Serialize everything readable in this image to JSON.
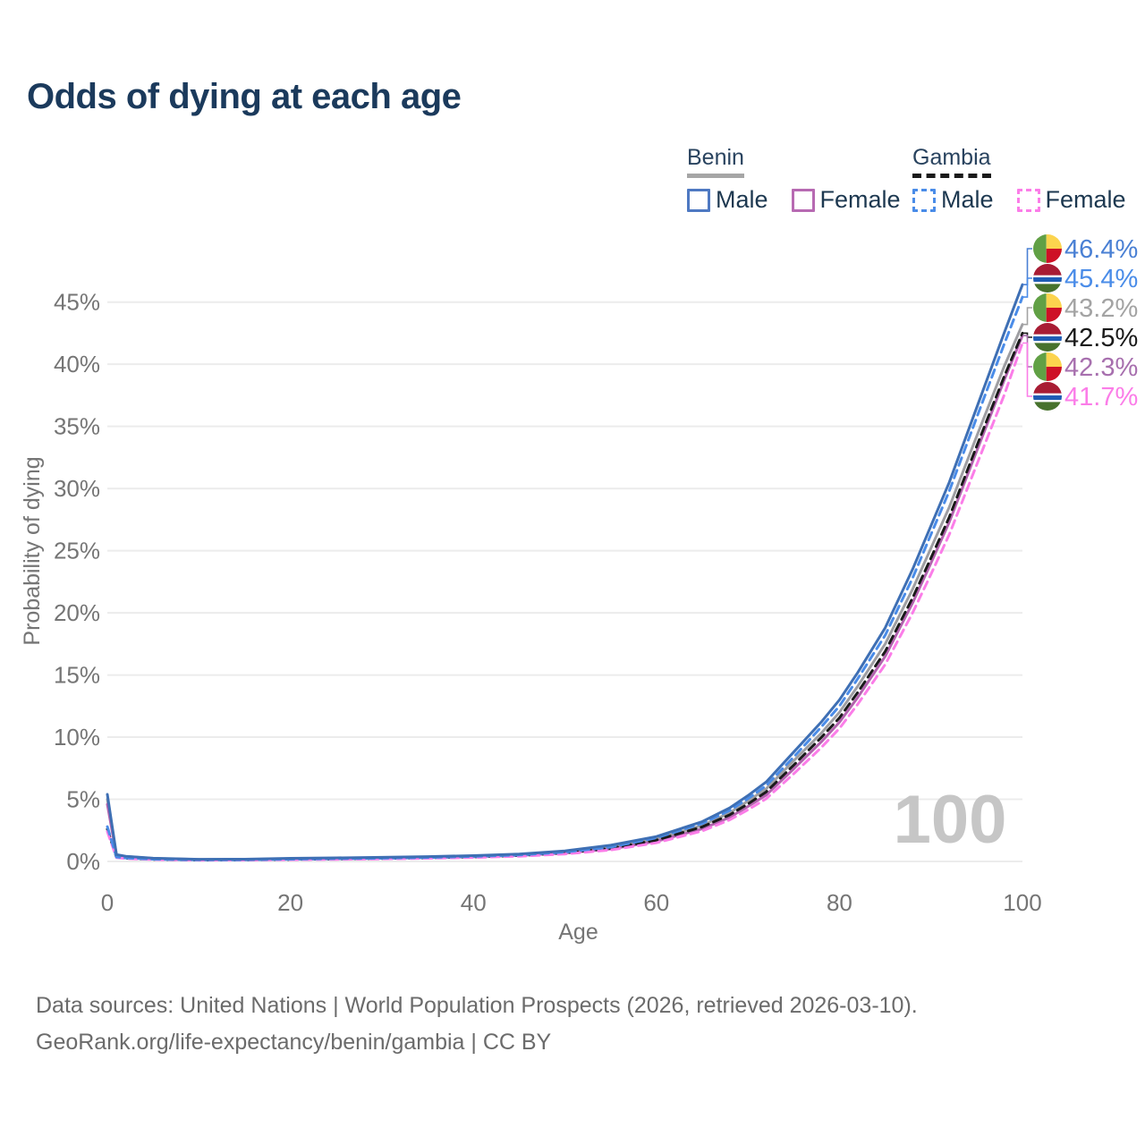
{
  "title": "Odds of dying at each age",
  "legend": {
    "benin": {
      "label": "Benin",
      "male": "Male",
      "female": "Female"
    },
    "gambia": {
      "label": "Gambia",
      "male": "Male",
      "female": "Female"
    }
  },
  "footer": {
    "line1": "Data sources: United Nations | World Population Prospects (2026, retrieved 2026-03-10).",
    "line2": "GeoRank.org/life-expectancy/benin/gambia | CC BY"
  },
  "colors": {
    "title": "#1b3a5c",
    "axis_text": "#757575",
    "grid": "#ececec",
    "watermark": "#c6c6c6",
    "series": {
      "benin-male": {
        "line": "#3e6fb4",
        "label": "#4a80d4"
      },
      "gambia-male": {
        "line": "#4a8ce8",
        "label": "#4a8ce8"
      },
      "benin-total": {
        "line": "#9e9ea2",
        "label": "#a3a3a3"
      },
      "gambia-total": {
        "line": "#1a1a1a",
        "label": "#1a1a1a"
      },
      "benin-female": {
        "line": "#b263ae",
        "label": "#a76fae"
      },
      "gambia-female": {
        "line": "#fb7de8",
        "label": "#fb7de8"
      }
    },
    "flag_benin": {
      "green": "#61a045",
      "yellow": "#fcd44e",
      "red": "#ce1126"
    },
    "flag_gambia": {
      "red": "#a81c34",
      "white": "#ffffff",
      "blue": "#1f5cb5",
      "green": "#47722d"
    }
  },
  "chart_data": {
    "type": "line",
    "title": "Odds of dying at each age",
    "xlabel": "Age",
    "ylabel": "Probability of dying",
    "watermark": "100",
    "xlim": [
      0,
      100
    ],
    "ylim": [
      0,
      48
    ],
    "xticks": [
      0,
      20,
      40,
      60,
      80,
      100
    ],
    "yticks": [
      0,
      5,
      10,
      15,
      20,
      25,
      30,
      35,
      40,
      45
    ],
    "ytick_suffix": "%",
    "grid": "horizontal",
    "legend_position": "top-right",
    "x": [
      0,
      1,
      2,
      5,
      10,
      15,
      20,
      25,
      30,
      35,
      40,
      45,
      50,
      55,
      60,
      65,
      68,
      70,
      72,
      75,
      78,
      80,
      82,
      85,
      88,
      90,
      92,
      95,
      98,
      100
    ],
    "series": [
      {
        "name": "Benin Male",
        "key": "benin-male",
        "flag": "benin",
        "dash": "solid",
        "end_label": "46.4%",
        "values": [
          5.4,
          0.55,
          0.42,
          0.26,
          0.17,
          0.18,
          0.25,
          0.29,
          0.33,
          0.39,
          0.47,
          0.6,
          0.85,
          1.3,
          2.0,
          3.2,
          4.3,
          5.3,
          6.4,
          8.8,
          11.2,
          13.0,
          15.2,
          18.8,
          23.5,
          27.0,
          30.5,
          36.5,
          42.5,
          46.4
        ]
      },
      {
        "name": "Gambia Male",
        "key": "gambia-male",
        "flag": "gambia",
        "dash": "dashed",
        "end_label": "45.4%",
        "values": [
          2.8,
          0.35,
          0.28,
          0.18,
          0.12,
          0.13,
          0.18,
          0.22,
          0.26,
          0.32,
          0.4,
          0.52,
          0.75,
          1.15,
          1.9,
          3.05,
          4.1,
          5.05,
          6.1,
          8.4,
          10.8,
          12.5,
          14.7,
          18.2,
          22.8,
          26.3,
          29.8,
          35.7,
          41.6,
          45.4
        ]
      },
      {
        "name": "Benin",
        "key": "benin-total",
        "flag": "benin",
        "dash": "solid",
        "end_label": "43.2%",
        "values": [
          5.0,
          0.52,
          0.4,
          0.245,
          0.155,
          0.16,
          0.215,
          0.25,
          0.29,
          0.345,
          0.42,
          0.54,
          0.76,
          1.15,
          1.8,
          2.9,
          3.9,
          4.85,
          5.85,
          8.1,
          10.3,
          12.0,
          14.1,
          17.5,
          21.9,
          25.2,
          28.5,
          34.2,
          39.8,
          43.2
        ]
      },
      {
        "name": "Gambia",
        "key": "gambia-total",
        "flag": "gambia",
        "dash": "dashed",
        "end_label": "42.5%",
        "values": [
          2.6,
          0.33,
          0.26,
          0.165,
          0.11,
          0.12,
          0.16,
          0.195,
          0.235,
          0.29,
          0.365,
          0.475,
          0.685,
          1.05,
          1.72,
          2.78,
          3.74,
          4.62,
          5.6,
          7.75,
          9.95,
          11.55,
          13.6,
          16.9,
          21.2,
          24.4,
          27.7,
          33.4,
          39.0,
          42.5
        ]
      },
      {
        "name": "Benin Female",
        "key": "benin-female",
        "flag": "benin",
        "dash": "solid",
        "end_label": "42.3%",
        "values": [
          4.6,
          0.5,
          0.38,
          0.23,
          0.14,
          0.14,
          0.18,
          0.21,
          0.25,
          0.3,
          0.37,
          0.48,
          0.68,
          1.0,
          1.62,
          2.62,
          3.55,
          4.42,
          5.35,
          7.45,
          9.6,
          11.2,
          13.2,
          16.5,
          20.8,
          24.0,
          27.3,
          33.0,
          38.7,
          42.3
        ]
      },
      {
        "name": "Gambia Female",
        "key": "gambia-female",
        "flag": "gambia",
        "dash": "dashed",
        "end_label": "41.7%",
        "values": [
          2.4,
          0.3,
          0.24,
          0.15,
          0.1,
          0.105,
          0.135,
          0.165,
          0.2,
          0.25,
          0.315,
          0.415,
          0.6,
          0.92,
          1.5,
          2.45,
          3.34,
          4.15,
          5.05,
          7.05,
          9.15,
          10.7,
          12.65,
          15.85,
          20.0,
          23.1,
          26.3,
          31.9,
          37.5,
          41.7
        ]
      }
    ]
  }
}
